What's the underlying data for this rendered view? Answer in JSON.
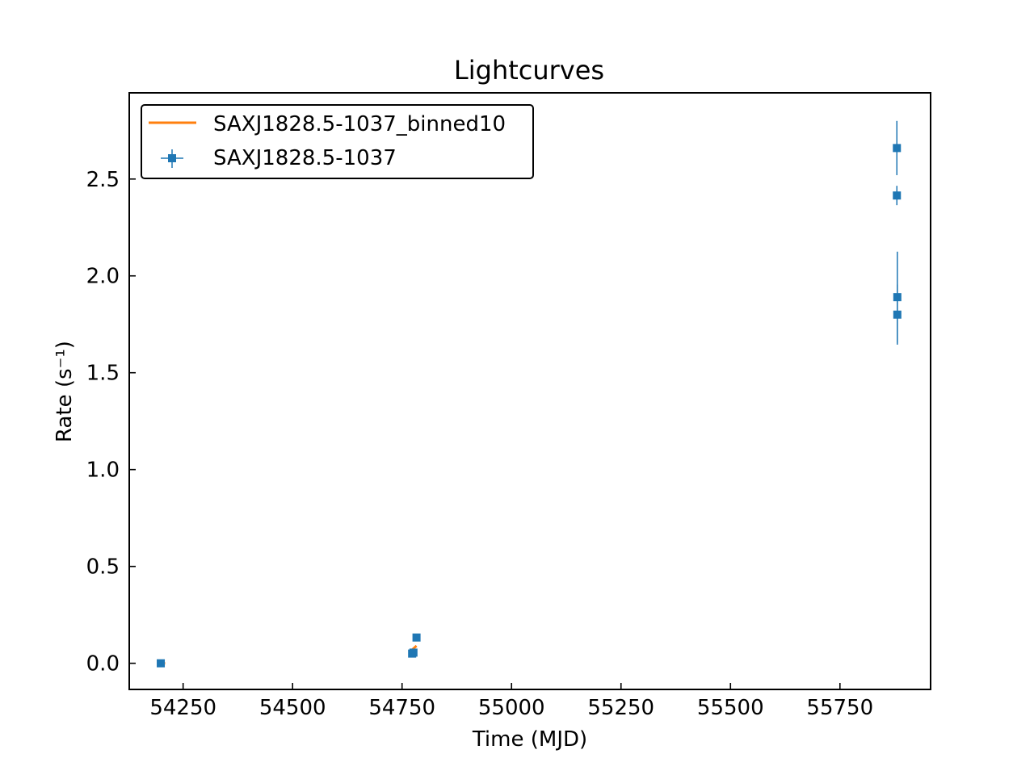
{
  "chart_data": {
    "type": "scatter",
    "title": "Lightcurves",
    "xlabel": "Time (MJD)",
    "ylabel": "Rate (s⁻¹)",
    "xlim": [
      54127,
      55957
    ],
    "ylim": [
      -0.135,
      2.945
    ],
    "xticks": [
      54250,
      54500,
      54750,
      55000,
      55250,
      55500,
      55750
    ],
    "yticks": [
      0.0,
      0.5,
      1.0,
      1.5,
      2.0,
      2.5
    ],
    "xtick_labels": [
      "54250",
      "54500",
      "54750",
      "55000",
      "55250",
      "55500",
      "55750"
    ],
    "ytick_labels": [
      "0.0",
      "0.5",
      "1.0",
      "1.5",
      "2.0",
      "2.5"
    ],
    "grid": false,
    "legend_position": "top-left",
    "series": [
      {
        "name": "SAXJ1828.5-1037",
        "style": "squares-with-errorbars",
        "color": "#1f77b4",
        "points": [
          {
            "x": 54199,
            "y": 0.0,
            "yerr": 0.003
          },
          {
            "x": 54773,
            "y": 0.05,
            "yerr": 0.008
          },
          {
            "x": 54776,
            "y": 0.055,
            "yerr": 0.008
          },
          {
            "x": 54783,
            "y": 0.133,
            "yerr": 0.01
          },
          {
            "x": 55880,
            "y": 2.66,
            "yerr": 0.14
          },
          {
            "x": 55880,
            "y": 2.415,
            "yerr": 0.05
          },
          {
            "x": 55881,
            "y": 1.89,
            "yerr": 0.235
          },
          {
            "x": 55881,
            "y": 1.8,
            "yerr": 0.155
          }
        ]
      },
      {
        "name": "SAXJ1828.5-1037_binned10",
        "style": "line",
        "color": "#ff7f0e",
        "points": [
          {
            "x": 54199,
            "y": 0.0
          },
          {
            "x": 54209,
            "y": 0.0
          },
          {
            "x": 54773,
            "y": 0.07
          },
          {
            "x": 54783,
            "y": 0.09
          }
        ]
      }
    ],
    "legend": [
      "SAXJ1828.5-1037_binned10",
      "SAXJ1828.5-1037"
    ]
  }
}
